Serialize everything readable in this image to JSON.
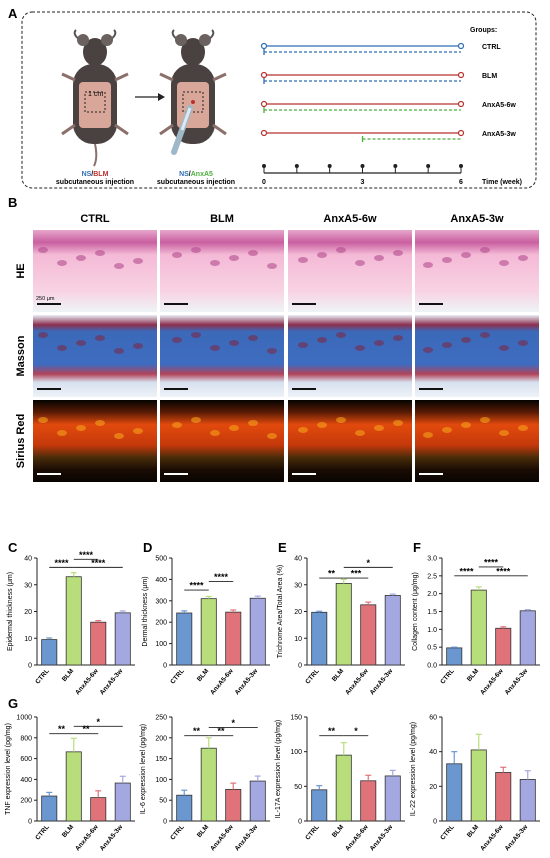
{
  "panels": {
    "A": "A",
    "B": "B",
    "C": "C",
    "D": "D",
    "E": "E",
    "F": "F",
    "G": "G"
  },
  "panel_a": {
    "mouse1": {
      "region": "1 cm",
      "caption_ns": "NS",
      "caption_sep": "/",
      "caption_drug": "BLM",
      "caption_rest": "subcutaneous injection"
    },
    "mouse2": {
      "caption_ns": "NS",
      "caption_sep": "/",
      "caption_drug": "AnxA5",
      "caption_rest": "subcutaneous injection"
    },
    "groups_title": "Groups:",
    "groups": [
      {
        "name": "CTRL",
        "solid": "#2f6db5",
        "dashed": "#2f6db5",
        "dash_start_week": 0
      },
      {
        "name": "BLM",
        "solid": "#b8322e",
        "dashed": "#2f6db5",
        "dash_start_week": 0
      },
      {
        "name": "AnxA5-6w",
        "solid": "#b8322e",
        "dashed": "#4caf3d",
        "dash_start_week": 0
      },
      {
        "name": "AnxA5-3w",
        "solid": "#b8322e",
        "dashed": "#4caf3d",
        "dash_start_week": 3
      }
    ],
    "time_ticks": [
      "0",
      "3",
      "6"
    ],
    "time_label": "Time (week)",
    "colors": {
      "ns": "#2f6db5",
      "blm": "#b8322e",
      "anxa5": "#4caf3d"
    }
  },
  "panel_b": {
    "columns": [
      "CTRL",
      "BLM",
      "AnxA5-6w",
      "AnxA5-3w"
    ],
    "rows": [
      "HE",
      "Masson",
      "Sirius Red"
    ],
    "scale": "250 μm"
  },
  "bar_colors": [
    "#6b97d1",
    "#b8de7c",
    "#e0737a",
    "#a4a8e0"
  ],
  "chart_data": [
    {
      "panel": "C",
      "type": "bar",
      "ylabel": "Epidermal thickness (μm)",
      "categories": [
        "CTRL",
        "BLM",
        "AnxA5-6w",
        "AnxA5-3w"
      ],
      "values": [
        9.5,
        33,
        16,
        19.5
      ],
      "errors": [
        0.6,
        1.5,
        0.6,
        0.7
      ],
      "ylim": [
        0,
        40
      ],
      "yticks": [
        "0",
        "10",
        "20",
        "30",
        "40"
      ],
      "sig": [
        {
          "a": 0,
          "b": 1,
          "label": "****",
          "level": 36.5
        },
        {
          "a": 1,
          "b": 2,
          "label": "****",
          "level": 39.5
        },
        {
          "a": 1,
          "b": 3,
          "label": "****",
          "level": 36.5
        }
      ]
    },
    {
      "panel": "D",
      "type": "bar",
      "ylabel": "Dermal thickness (μm)",
      "categories": [
        "CTRL",
        "BLM",
        "AnxA5-6w",
        "AnxA5-3w"
      ],
      "values": [
        243,
        310,
        247,
        312
      ],
      "errors": [
        10,
        10,
        10,
        10
      ],
      "ylim": [
        0,
        500
      ],
      "yticks": [
        "0",
        "100",
        "200",
        "300",
        "400",
        "500"
      ],
      "sig": [
        {
          "a": 0,
          "b": 1,
          "label": "****",
          "level": 350
        },
        {
          "a": 1,
          "b": 2,
          "label": "****",
          "level": 390
        }
      ]
    },
    {
      "panel": "E",
      "type": "bar",
      "ylabel": "Trichrome Area/Total Area (%)",
      "categories": [
        "CTRL",
        "BLM",
        "AnxA5-6w",
        "AnxA5-3w"
      ],
      "values": [
        19.7,
        30.5,
        22.5,
        26
      ],
      "errors": [
        0.4,
        1.5,
        1,
        0.5
      ],
      "ylim": [
        0,
        40
      ],
      "yticks": [
        "0",
        "10",
        "20",
        "30",
        "40"
      ],
      "sig": [
        {
          "a": 0,
          "b": 1,
          "label": "**",
          "level": 32.5
        },
        {
          "a": 1,
          "b": 2,
          "label": "***",
          "level": 32.5
        },
        {
          "a": 1,
          "b": 3,
          "label": "*",
          "level": 36.5
        }
      ]
    },
    {
      "panel": "F",
      "type": "bar",
      "ylabel": "Collagen content (μg/mg)",
      "categories": [
        "CTRL",
        "BLM",
        "AnxA5-6w",
        "AnxA5-3w"
      ],
      "values": [
        0.48,
        2.1,
        1.03,
        1.52
      ],
      "errors": [
        0.02,
        0.09,
        0.04,
        0.03
      ],
      "ylim": [
        0,
        3.0
      ],
      "yticks": [
        "0.0",
        "0.5",
        "1.0",
        "1.5",
        "2.0",
        "2.5",
        "3.0"
      ],
      "sig": [
        {
          "a": 0,
          "b": 1,
          "label": "****",
          "level": 2.5
        },
        {
          "a": 1,
          "b": 2,
          "label": "****",
          "level": 2.75
        },
        {
          "a": 1,
          "b": 3,
          "label": "****",
          "level": 2.5
        }
      ]
    },
    {
      "panel": "G1",
      "type": "bar",
      "ylabel": "TNF expression level (pg/mg)",
      "categories": [
        "CTRL",
        "BLM",
        "AnxA5-6w",
        "AnxA5-3w"
      ],
      "values": [
        240,
        665,
        225,
        365
      ],
      "errors": [
        35,
        130,
        65,
        65
      ],
      "ylim": [
        0,
        1000
      ],
      "yticks": [
        "0",
        "200",
        "400",
        "600",
        "800",
        "1000"
      ],
      "sig": [
        {
          "a": 0,
          "b": 1,
          "label": "**",
          "level": 840
        },
        {
          "a": 1,
          "b": 2,
          "label": "**",
          "level": 840
        },
        {
          "a": 1,
          "b": 3,
          "label": "*",
          "level": 910
        }
      ]
    },
    {
      "panel": "G2",
      "type": "bar",
      "ylabel": "IL-6 expression level (pg/mg)",
      "categories": [
        "CTRL",
        "BLM",
        "AnxA5-6w",
        "AnxA5-3w"
      ],
      "values": [
        62,
        175,
        76,
        96
      ],
      "errors": [
        12,
        25,
        15,
        12
      ],
      "ylim": [
        0,
        250
      ],
      "yticks": [
        "0",
        "50",
        "100",
        "150",
        "200",
        "250"
      ],
      "sig": [
        {
          "a": 0,
          "b": 1,
          "label": "**",
          "level": 205
        },
        {
          "a": 1,
          "b": 2,
          "label": "**",
          "level": 205
        },
        {
          "a": 1,
          "b": 3,
          "label": "*",
          "level": 225
        }
      ]
    },
    {
      "panel": "G3",
      "type": "bar",
      "ylabel": "IL-17A expression level (pg/mg)",
      "categories": [
        "CTRL",
        "BLM",
        "AnxA5-6w",
        "AnxA5-3w"
      ],
      "values": [
        45,
        95,
        58,
        65
      ],
      "errors": [
        6,
        18,
        8,
        8
      ],
      "ylim": [
        0,
        150
      ],
      "yticks": [
        "0",
        "50",
        "100",
        "150"
      ],
      "sig": [
        {
          "a": 0,
          "b": 1,
          "label": "**",
          "level": 123
        },
        {
          "a": 1,
          "b": 2,
          "label": "*",
          "level": 123
        }
      ]
    },
    {
      "panel": "G4",
      "type": "bar",
      "ylabel": "IL-22 expression level (pg/mg)",
      "categories": [
        "CTRL",
        "BLM",
        "AnxA5-6w",
        "AnxA5-3w"
      ],
      "values": [
        33,
        41,
        28,
        24
      ],
      "errors": [
        7,
        9,
        3,
        5
      ],
      "ylim": [
        0,
        60
      ],
      "yticks": [
        "0",
        "20",
        "40",
        "60"
      ],
      "sig": []
    }
  ]
}
